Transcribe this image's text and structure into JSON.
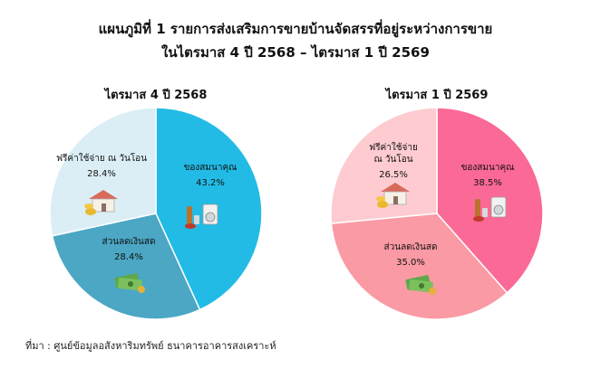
{
  "header": {
    "title_line1": "แผนภูมิที่ 1 รายการส่งเสริมการขายบ้านจัดสรรที่อยู่ระหว่างการขาย",
    "title_line2": "ในไตรมาส 4 ปี 2568 – ไตรมาส 1 ปี 2569"
  },
  "chart_data": [
    {
      "type": "pie",
      "title": "ไตรมาส 4 ปี 2568",
      "slices": [
        {
          "label": "ของสมนาคุณ",
          "label_lines": [
            "ของสมนาคุณ"
          ],
          "value": 43.2,
          "pct_text": "43.2%",
          "color": "#22bbe6",
          "icon": "gift-appliances-icon"
        },
        {
          "label": "ส่วนลดเงินสด",
          "label_lines": [
            "ส่วนลดเงินสด"
          ],
          "value": 28.4,
          "pct_text": "28.4%",
          "color": "#4ba7c4",
          "icon": "cash-money-icon"
        },
        {
          "label": "ฟรีค่าใช้จ่าย ณ วันโอน",
          "label_lines": [
            "ฟรีค่าใช้จ่าย ณ วันโอน"
          ],
          "value": 28.4,
          "pct_text": "28.4%",
          "color": "#dbeef6",
          "icon": "house-coins-icon"
        }
      ]
    },
    {
      "type": "pie",
      "title": "ไตรมาส 1 ปี 2569",
      "slices": [
        {
          "label": "ของสมนาคุณ",
          "label_lines": [
            "ของสมนาคุณ"
          ],
          "value": 38.5,
          "pct_text": "38.5%",
          "color": "#fb6996",
          "icon": "gift-appliances-icon"
        },
        {
          "label": "ส่วนลดเงินสด",
          "label_lines": [
            "ส่วนลดเงินสด"
          ],
          "value": 35.0,
          "pct_text": "35.0%",
          "color": "#fa9aa4",
          "icon": "cash-money-icon"
        },
        {
          "label": "ฟรีค่าใช้จ่าย ณ วันโอน",
          "label_lines": [
            "ฟรีค่าใช้จ่าย",
            "ณ วันโอน"
          ],
          "value": 26.5,
          "pct_text": "26.5%",
          "color": "#fdcbd0",
          "icon": "house-coins-icon"
        }
      ]
    }
  ],
  "footer": {
    "source": "ที่มา : ศูนย์ข้อมูลอสังหาริมทรัพย์ ธนาคารอาคารสงเคราะห์"
  }
}
